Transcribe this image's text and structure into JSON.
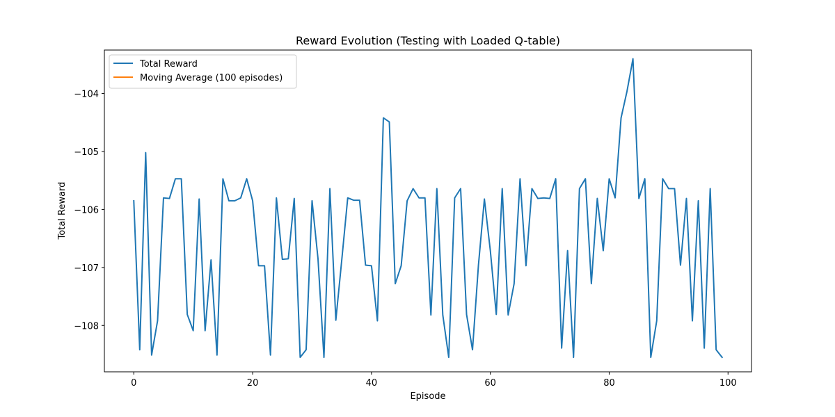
{
  "chart_data": {
    "type": "line",
    "title": "Reward Evolution (Testing with Loaded Q-table)",
    "xlabel": "Episode",
    "ylabel": "Total Reward",
    "xlim": [
      -4.95,
      103.95
    ],
    "ylim": [
      -108.8,
      -103.25
    ],
    "xticks": [
      0,
      20,
      40,
      60,
      80,
      100
    ],
    "xtick_labels": [
      "0",
      "20",
      "40",
      "60",
      "80",
      "100"
    ],
    "yticks": [
      -108,
      -107,
      -106,
      -105,
      -104
    ],
    "ytick_labels": [
      "−108",
      "−107",
      "−106",
      "−105",
      "−104"
    ],
    "grid": false,
    "legend_position": "top-left",
    "series": [
      {
        "name": "Total Reward",
        "color": "#1f77b4",
        "x": [
          0,
          1,
          2,
          3,
          4,
          5,
          6,
          7,
          8,
          9,
          10,
          11,
          12,
          13,
          14,
          15,
          16,
          17,
          18,
          19,
          20,
          21,
          22,
          23,
          24,
          25,
          26,
          27,
          28,
          29,
          30,
          31,
          32,
          33,
          34,
          35,
          36,
          37,
          38,
          39,
          40,
          41,
          42,
          43,
          44,
          45,
          46,
          47,
          48,
          49,
          50,
          51,
          52,
          53,
          54,
          55,
          56,
          57,
          58,
          59,
          60,
          61,
          62,
          63,
          64,
          65,
          66,
          67,
          68,
          69,
          70,
          71,
          72,
          73,
          74,
          75,
          76,
          77,
          78,
          79,
          80,
          81,
          82,
          83,
          84,
          85,
          86,
          87,
          88,
          89,
          90,
          91,
          92,
          93,
          94,
          95,
          96,
          97,
          98,
          99
        ],
        "values": [
          -105.85,
          -108.42,
          -105.02,
          -108.51,
          -107.92,
          -105.8,
          -105.81,
          -105.47,
          -105.47,
          -107.81,
          -108.09,
          -105.82,
          -108.09,
          -106.87,
          -108.51,
          -105.47,
          -105.85,
          -105.85,
          -105.8,
          -105.47,
          -105.85,
          -106.97,
          -106.97,
          -108.51,
          -105.8,
          -106.86,
          -106.85,
          -105.81,
          -108.55,
          -108.42,
          -105.85,
          -106.85,
          -108.55,
          -105.64,
          -107.91,
          -106.87,
          -105.8,
          -105.84,
          -105.84,
          -106.96,
          -106.97,
          -107.92,
          -104.42,
          -104.49,
          -107.28,
          -106.97,
          -105.85,
          -105.64,
          -105.8,
          -105.8,
          -107.82,
          -105.64,
          -107.82,
          -108.55,
          -105.8,
          -105.64,
          -107.81,
          -108.42,
          -106.96,
          -105.82,
          -106.71,
          -107.81,
          -105.64,
          -107.82,
          -107.28,
          -105.47,
          -106.97,
          -105.64,
          -105.81,
          -105.8,
          -105.81,
          -105.47,
          -108.39,
          -106.71,
          -108.55,
          -105.64,
          -105.47,
          -107.28,
          -105.81,
          -106.71,
          -105.47,
          -105.8,
          -104.42,
          -103.96,
          -103.4,
          -105.81,
          -105.47,
          -108.55,
          -107.92,
          -105.47,
          -105.64,
          -105.64,
          -106.96,
          -105.81,
          -107.92,
          -105.85,
          -108.39,
          -105.64,
          -108.42,
          -108.55
        ]
      },
      {
        "name": "Moving Average (100 episodes)",
        "color": "#ff7f0e",
        "x": [],
        "values": []
      }
    ]
  }
}
